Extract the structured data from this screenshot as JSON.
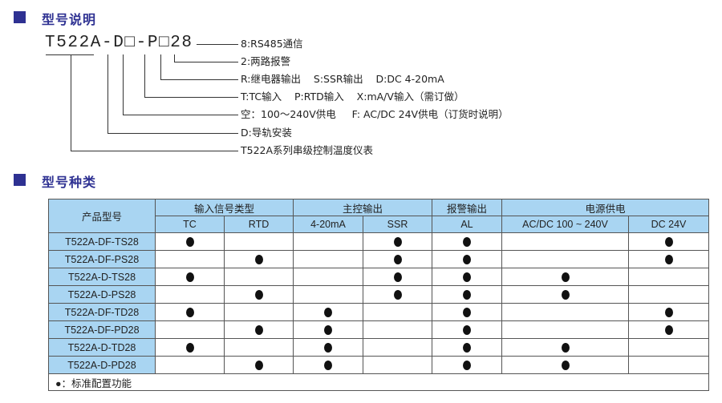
{
  "section1": {
    "title": "型号说明"
  },
  "model_code": "T522A-D□-P□28",
  "legend_items": [
    "8:RS485通信",
    "2:两路报警",
    "R:继电器输出    S:SSR输出    D:DC 4-20mA",
    "T:TC输入    P:RTD输入    X:mA/V输入（需订做）",
    "空：100～240V供电     F: AC/DC 24V供电（订货时说明）",
    "D:导轨安装",
    "T522A系列串级控制温度仪表"
  ],
  "section2": {
    "title": "型号种类"
  },
  "table": {
    "model_header": "产品型号",
    "groups": [
      "输入信号类型",
      "主控输出",
      "报警输出",
      "电源供电"
    ],
    "columns": [
      "TC",
      "RTD",
      "4-20mA",
      "SSR",
      "AL",
      "AC/DC 100 ~ 240V",
      "DC 24V"
    ],
    "rows": [
      {
        "model": "T522A-DF-TS28",
        "marks": [
          1,
          0,
          0,
          1,
          1,
          0,
          1
        ]
      },
      {
        "model": "T522A-DF-PS28",
        "marks": [
          0,
          1,
          0,
          1,
          1,
          0,
          1
        ]
      },
      {
        "model": "T522A-D-TS28",
        "marks": [
          1,
          0,
          0,
          1,
          1,
          1,
          0
        ]
      },
      {
        "model": "T522A-D-PS28",
        "marks": [
          0,
          1,
          0,
          1,
          1,
          1,
          0
        ]
      },
      {
        "model": "T522A-DF-TD28",
        "marks": [
          1,
          0,
          1,
          0,
          1,
          0,
          1
        ]
      },
      {
        "model": "T522A-DF-PD28",
        "marks": [
          0,
          1,
          1,
          0,
          1,
          0,
          1
        ]
      },
      {
        "model": "T522A-D-TD28",
        "marks": [
          1,
          0,
          1,
          0,
          1,
          1,
          0
        ]
      },
      {
        "model": "T522A-D-PD28",
        "marks": [
          0,
          1,
          1,
          0,
          1,
          1,
          0
        ]
      }
    ],
    "footnote": "●：标准配置功能"
  },
  "colors": {
    "accent": "#2e3192",
    "header_bg": "#a9d5f2"
  }
}
